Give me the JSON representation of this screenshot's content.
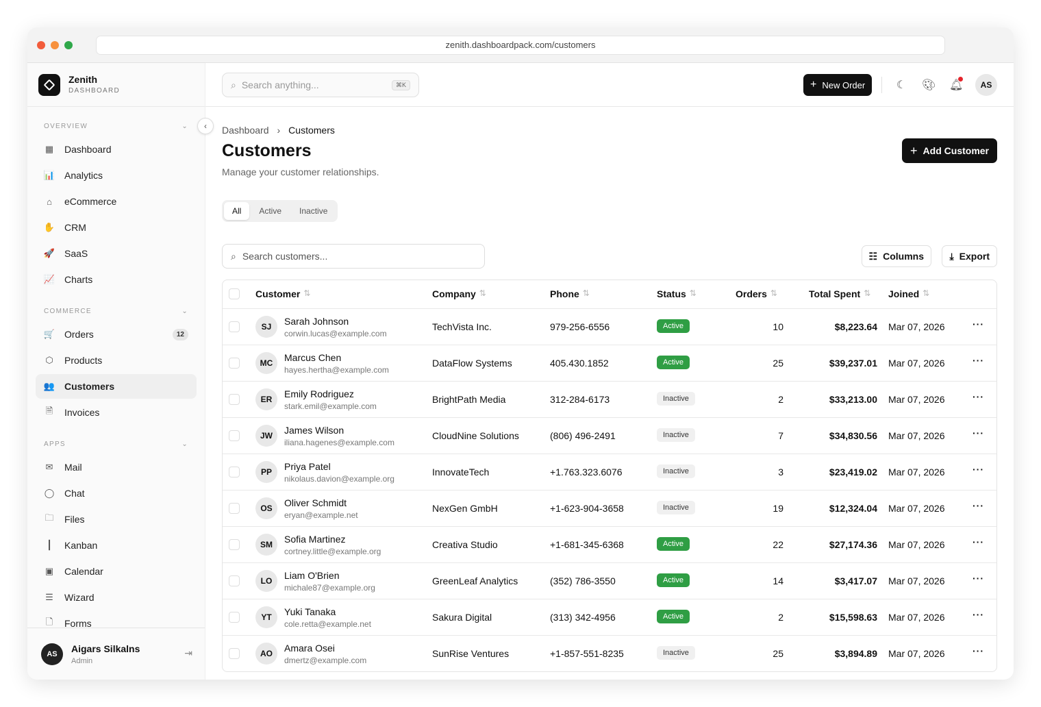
{
  "browser": {
    "url": "zenith.dashboardpack.com/customers"
  },
  "brand": {
    "name": "Zenith",
    "subtitle": "DASHBOARD"
  },
  "sidebar": {
    "sections": [
      {
        "label": "OVERVIEW",
        "items": [
          {
            "label": "Dashboard",
            "icon": "grid-icon",
            "glyph": "▦"
          },
          {
            "label": "Analytics",
            "icon": "bar-chart-icon",
            "glyph": "📊"
          },
          {
            "label": "eCommerce",
            "icon": "store-icon",
            "glyph": "⌂"
          },
          {
            "label": "CRM",
            "icon": "handshake-icon",
            "glyph": "✋"
          },
          {
            "label": "SaaS",
            "icon": "rocket-icon",
            "glyph": "🚀"
          },
          {
            "label": "Charts",
            "icon": "area-chart-icon",
            "glyph": "📈"
          }
        ]
      },
      {
        "label": "COMMERCE",
        "items": [
          {
            "label": "Orders",
            "icon": "cart-icon",
            "glyph": "🛒",
            "badge": "12"
          },
          {
            "label": "Products",
            "icon": "box-icon",
            "glyph": "⬡"
          },
          {
            "label": "Customers",
            "icon": "users-icon",
            "glyph": "👥",
            "active": true
          },
          {
            "label": "Invoices",
            "icon": "file-text-icon",
            "glyph": "🗎"
          }
        ]
      },
      {
        "label": "APPS",
        "items": [
          {
            "label": "Mail",
            "icon": "mail-icon",
            "glyph": "✉"
          },
          {
            "label": "Chat",
            "icon": "chat-icon",
            "glyph": "◯"
          },
          {
            "label": "Files",
            "icon": "folder-icon",
            "glyph": "🗀"
          },
          {
            "label": "Kanban",
            "icon": "kanban-icon",
            "glyph": "┃"
          },
          {
            "label": "Calendar",
            "icon": "calendar-icon",
            "glyph": "▣"
          },
          {
            "label": "Wizard",
            "icon": "checklist-icon",
            "glyph": "☰"
          },
          {
            "label": "Forms",
            "icon": "form-icon",
            "glyph": "🗋"
          }
        ]
      }
    ],
    "user": {
      "initials": "AS",
      "name": "Aigars Silkalns",
      "role": "Admin"
    }
  },
  "topbar": {
    "search_placeholder": "Search anything...",
    "shortcut": "⌘K",
    "new_order": "New Order",
    "avatar": "AS"
  },
  "page": {
    "breadcrumb": [
      "Dashboard",
      "Customers"
    ],
    "title": "Customers",
    "subtitle": "Manage your customer relationships.",
    "add_button": "Add Customer",
    "tabs": [
      "All",
      "Active",
      "Inactive"
    ],
    "active_tab": "All",
    "search_placeholder": "Search customers...",
    "columns_button": "Columns",
    "export_button": "Export"
  },
  "table": {
    "headers": [
      "Customer",
      "Company",
      "Phone",
      "Status",
      "Orders",
      "Total Spent",
      "Joined"
    ],
    "rows": [
      {
        "initials": "SJ",
        "name": "Sarah Johnson",
        "email": "corwin.lucas@example.com",
        "company": "TechVista Inc.",
        "phone": "979-256-6556",
        "status": "Active",
        "orders": "10",
        "total": "$8,223.64",
        "joined": "Mar 07, 2026"
      },
      {
        "initials": "MC",
        "name": "Marcus Chen",
        "email": "hayes.hertha@example.com",
        "company": "DataFlow Systems",
        "phone": "405.430.1852",
        "status": "Active",
        "orders": "25",
        "total": "$39,237.01",
        "joined": "Mar 07, 2026"
      },
      {
        "initials": "ER",
        "name": "Emily Rodriguez",
        "email": "stark.emil@example.com",
        "company": "BrightPath Media",
        "phone": "312-284-6173",
        "status": "Inactive",
        "orders": "2",
        "total": "$33,213.00",
        "joined": "Mar 07, 2026"
      },
      {
        "initials": "JW",
        "name": "James Wilson",
        "email": "iliana.hagenes@example.com",
        "company": "CloudNine Solutions",
        "phone": "(806) 496-2491",
        "status": "Inactive",
        "orders": "7",
        "total": "$34,830.56",
        "joined": "Mar 07, 2026"
      },
      {
        "initials": "PP",
        "name": "Priya Patel",
        "email": "nikolaus.davion@example.org",
        "company": "InnovateTech",
        "phone": "+1.763.323.6076",
        "status": "Inactive",
        "orders": "3",
        "total": "$23,419.02",
        "joined": "Mar 07, 2026"
      },
      {
        "initials": "OS",
        "name": "Oliver Schmidt",
        "email": "eryan@example.net",
        "company": "NexGen GmbH",
        "phone": "+1-623-904-3658",
        "status": "Inactive",
        "orders": "19",
        "total": "$12,324.04",
        "joined": "Mar 07, 2026"
      },
      {
        "initials": "SM",
        "name": "Sofia Martinez",
        "email": "cortney.little@example.org",
        "company": "Creativa Studio",
        "phone": "+1-681-345-6368",
        "status": "Active",
        "orders": "22",
        "total": "$27,174.36",
        "joined": "Mar 07, 2026"
      },
      {
        "initials": "LO",
        "name": "Liam O'Brien",
        "email": "michale87@example.org",
        "company": "GreenLeaf Analytics",
        "phone": "(352) 786-3550",
        "status": "Active",
        "orders": "14",
        "total": "$3,417.07",
        "joined": "Mar 07, 2026"
      },
      {
        "initials": "YT",
        "name": "Yuki Tanaka",
        "email": "cole.retta@example.net",
        "company": "Sakura Digital",
        "phone": "(313) 342-4956",
        "status": "Active",
        "orders": "2",
        "total": "$15,598.63",
        "joined": "Mar 07, 2026"
      },
      {
        "initials": "AO",
        "name": "Amara Osei",
        "email": "dmertz@example.com",
        "company": "SunRise Ventures",
        "phone": "+1-857-551-8235",
        "status": "Inactive",
        "orders": "25",
        "total": "$3,894.89",
        "joined": "Mar 07, 2026"
      }
    ]
  },
  "colors": {
    "active": "#2f9e44",
    "primary": "#111111",
    "notification": "#e5242b"
  }
}
